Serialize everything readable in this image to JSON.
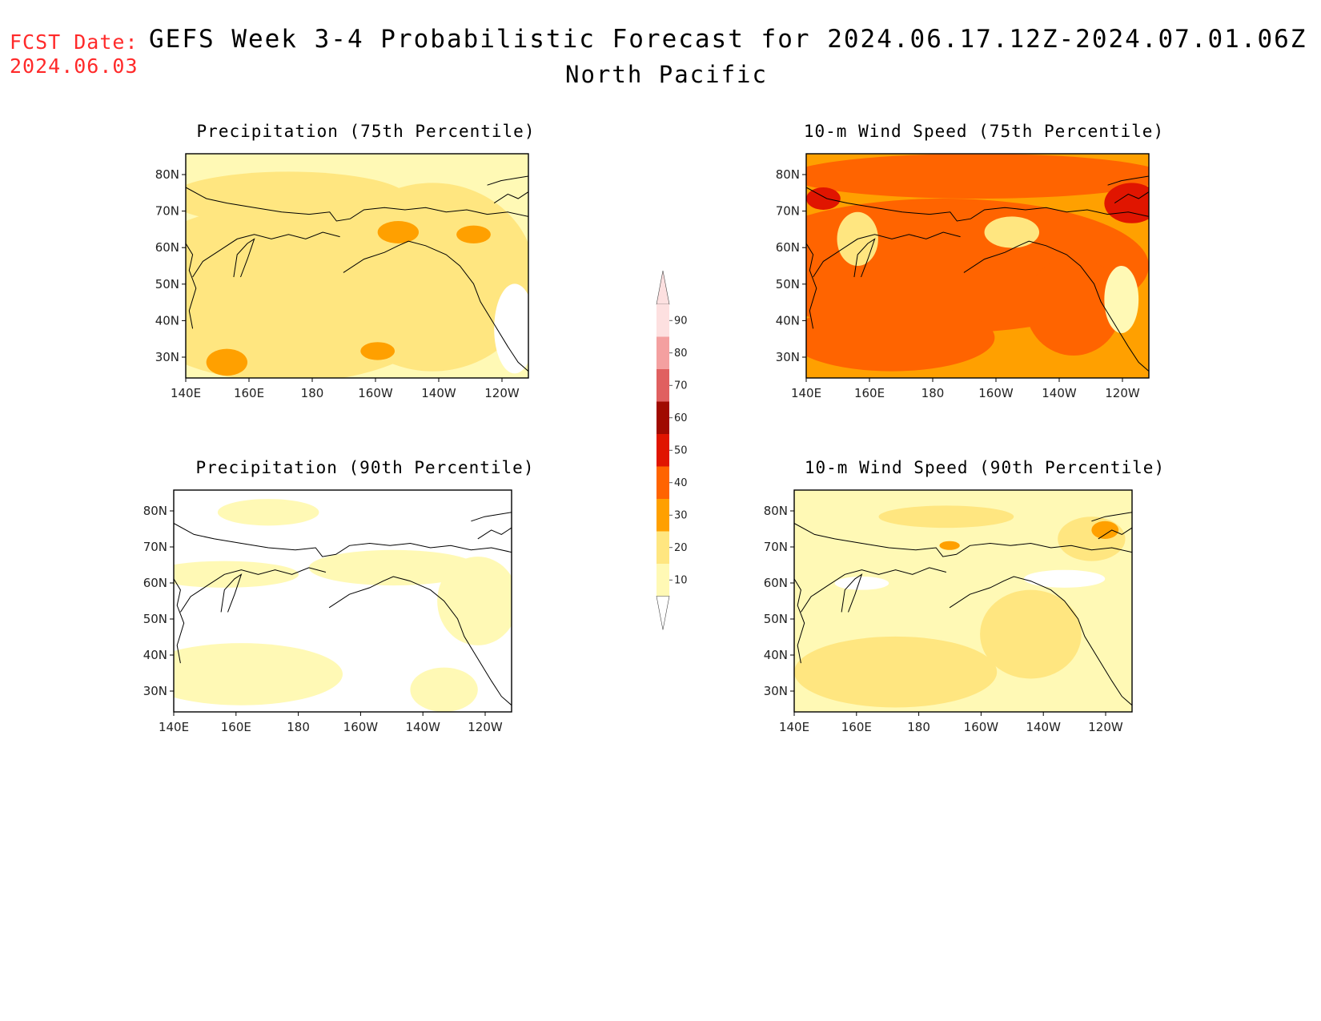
{
  "header": {
    "fcst_label": "FCST Date:",
    "fcst_date": "2024.06.03",
    "title": "GEFS Week 3-4 Probabilistic Forecast for 2024.06.17.12Z-2024.07.01.06Z",
    "subtitle": "North Pacific"
  },
  "axes": {
    "x_ticks": [
      "140E",
      "160E",
      "180",
      "160W",
      "140W",
      "120W"
    ],
    "y_ticks": [
      "80N",
      "70N",
      "60N",
      "50N",
      "40N",
      "30N"
    ]
  },
  "panels": [
    {
      "title": "Precipitation (75th Percentile)",
      "base_level": 10,
      "patches": [
        [
          20,
          0.3,
          0.62,
          0.5,
          0.4
        ],
        [
          20,
          0.72,
          0.55,
          0.3,
          0.42
        ],
        [
          20,
          0.3,
          0.2,
          0.35,
          0.12
        ],
        [
          30,
          0.62,
          0.35,
          0.06,
          0.05
        ],
        [
          30,
          0.12,
          0.93,
          0.06,
          0.06
        ],
        [
          30,
          0.56,
          0.88,
          0.05,
          0.04
        ],
        [
          30,
          0.84,
          0.36,
          0.05,
          0.04
        ],
        [
          -1,
          0.96,
          0.78,
          0.06,
          0.2
        ]
      ]
    },
    {
      "title": "10-m Wind Speed (75th Percentile)",
      "base_level": 30,
      "patches": [
        [
          40,
          0.4,
          0.5,
          0.6,
          0.3
        ],
        [
          40,
          0.5,
          0.1,
          0.55,
          0.1
        ],
        [
          40,
          0.25,
          0.82,
          0.3,
          0.15
        ],
        [
          40,
          0.78,
          0.68,
          0.14,
          0.22
        ],
        [
          50,
          0.95,
          0.22,
          0.08,
          0.09
        ],
        [
          50,
          0.05,
          0.2,
          0.05,
          0.05
        ],
        [
          20,
          0.15,
          0.38,
          0.06,
          0.12
        ],
        [
          20,
          0.6,
          0.35,
          0.08,
          0.07
        ],
        [
          10,
          0.92,
          0.65,
          0.05,
          0.15
        ]
      ]
    },
    {
      "title": "Precipitation (90th Percentile)",
      "base_level": 0,
      "patches": [
        [
          10,
          0.2,
          0.83,
          0.3,
          0.14
        ],
        [
          10,
          0.28,
          0.1,
          0.15,
          0.06
        ],
        [
          10,
          0.15,
          0.38,
          0.22,
          0.06
        ],
        [
          10,
          0.65,
          0.35,
          0.25,
          0.08
        ],
        [
          10,
          0.9,
          0.5,
          0.12,
          0.2
        ],
        [
          10,
          0.8,
          0.9,
          0.1,
          0.1
        ]
      ]
    },
    {
      "title": "10-m Wind Speed (90th Percentile)",
      "base_level": 10,
      "patches": [
        [
          20,
          0.3,
          0.82,
          0.3,
          0.16
        ],
        [
          20,
          0.45,
          0.12,
          0.2,
          0.05
        ],
        [
          20,
          0.7,
          0.65,
          0.15,
          0.2
        ],
        [
          20,
          0.88,
          0.22,
          0.1,
          0.1
        ],
        [
          30,
          0.92,
          0.18,
          0.04,
          0.04
        ],
        [
          30,
          0.46,
          0.25,
          0.03,
          0.02
        ],
        [
          0,
          0.8,
          0.4,
          0.12,
          0.04
        ],
        [
          0,
          0.2,
          0.42,
          0.08,
          0.03
        ]
      ]
    }
  ],
  "colorbar": {
    "labels": [
      "10",
      "20",
      "30",
      "40",
      "50",
      "60",
      "70",
      "80",
      "90"
    ],
    "colors": [
      "#fff9b5",
      "#ffe680",
      "#ffa000",
      "#ff6400",
      "#e01500",
      "#a00a00",
      "#e06060",
      "#f4a0a0",
      "#fde0e0"
    ]
  },
  "colors": {
    "fcst_text": "#ff2a2a",
    "coastline": "#000000"
  }
}
